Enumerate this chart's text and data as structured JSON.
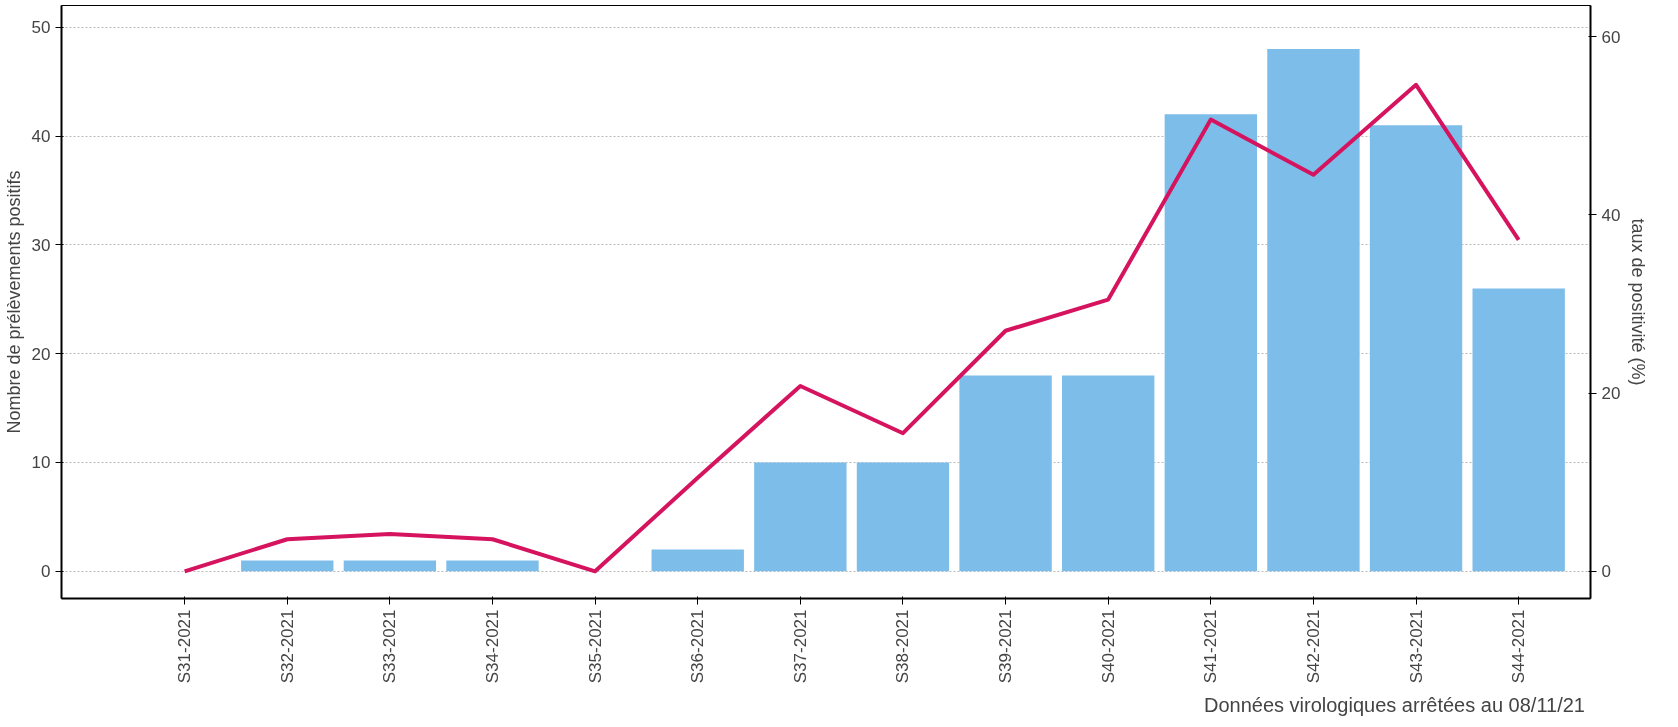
{
  "chart_data": {
    "type": "bar",
    "categories": [
      "S31-2021",
      "S32-2021",
      "S33-2021",
      "S34-2021",
      "S35-2021",
      "S36-2021",
      "S37-2021",
      "S38-2021",
      "S39-2021",
      "S40-2021",
      "S41-2021",
      "S42-2021",
      "S43-2021",
      "S44-2021"
    ],
    "series": [
      {
        "color": "#7dbde9",
        "values": [
          0,
          1,
          1,
          1,
          0,
          2,
          10,
          10,
          18,
          18,
          42,
          48,
          41,
          26
        ]
      },
      {
        "type": "line",
        "axis": "y2",
        "color": "#d6135e",
        "values": [
          0,
          3.6,
          4.2,
          3.6,
          0,
          10.5,
          20.8,
          15.5,
          27,
          30.5,
          50.7,
          44.5,
          54.6,
          37.2
        ]
      }
    ],
    "ylabel": "Nombre de prélèvements positifs",
    "y2label": "taux de positivité (%)",
    "ylim": [
      -2.5,
      52
    ],
    "yticks": [
      0,
      10,
      20,
      30,
      40,
      50
    ],
    "y2lim": [
      -3.05,
      63.5
    ],
    "y2ticks": [
      0,
      20,
      40,
      60
    ],
    "grid": "y",
    "marker": "none",
    "line_style": "solid",
    "annotations": [
      "Données virologiques arrêtées au  08/11/21"
    ]
  }
}
